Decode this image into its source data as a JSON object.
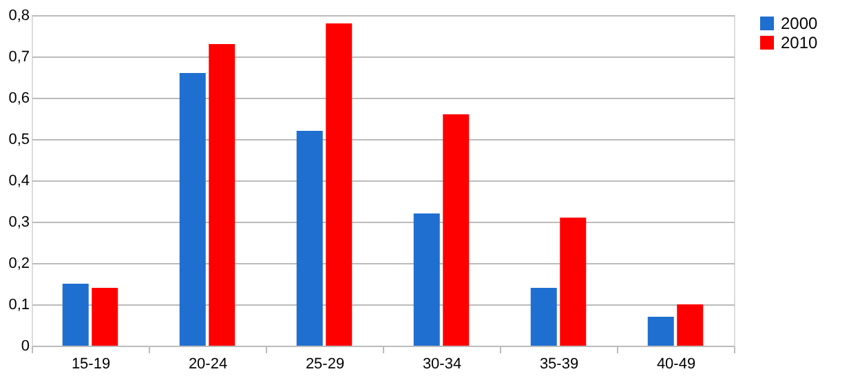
{
  "chart_data": {
    "type": "bar",
    "categories": [
      "15-19",
      "20-24",
      "25-29",
      "30-34",
      "35-39",
      "40-49"
    ],
    "series": [
      {
        "name": "2000",
        "color": "#1f6fd0",
        "values": [
          0.15,
          0.66,
          0.52,
          0.32,
          0.14,
          0.07
        ]
      },
      {
        "name": "2010",
        "color": "#ff0000",
        "values": [
          0.14,
          0.73,
          0.78,
          0.56,
          0.31,
          0.1
        ]
      }
    ],
    "ylim": [
      0,
      0.8
    ],
    "yticks": [
      0,
      {
        "value": 0.1,
        "label": "0,1"
      },
      {
        "value": 0.2,
        "label": "0,2"
      },
      {
        "value": 0.3,
        "label": "0,3"
      },
      {
        "value": 0.4,
        "label": "0,4"
      },
      {
        "value": 0.5,
        "label": "0,5"
      },
      {
        "value": 0.6,
        "label": "0,6"
      },
      {
        "value": 0.7,
        "label": "0,7"
      },
      {
        "value": 0.8,
        "label": "0,8"
      }
    ],
    "grid": "y",
    "legend": "right"
  }
}
